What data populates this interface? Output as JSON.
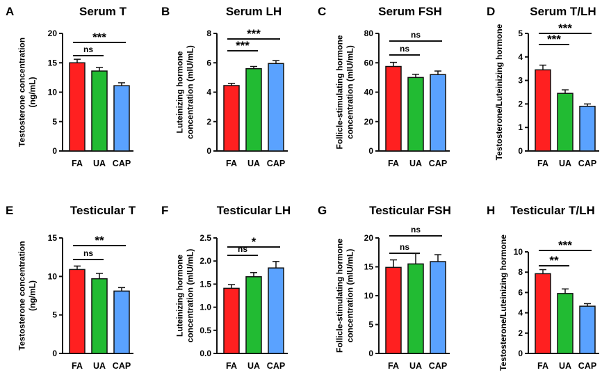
{
  "colors": {
    "FA": "#ff2020",
    "UA": "#22bb33",
    "CAP": "#5aa2ff",
    "axis": "#111111"
  },
  "chart_data": [
    {
      "type": "bar",
      "panel": "A",
      "title": "Serum T",
      "ylabel": [
        "Testosterone concentration",
        "(ng/mL)"
      ],
      "categories": [
        "FA",
        "UA",
        "CAP"
      ],
      "values": [
        15.0,
        13.6,
        11.1
      ],
      "errors": [
        0.6,
        0.6,
        0.5
      ],
      "ylim": [
        0,
        20
      ],
      "yticks": [
        "0",
        "5",
        "10",
        "15",
        "20"
      ],
      "significance": [
        {
          "from": "FA",
          "to": "UA",
          "label": "ns"
        },
        {
          "from": "FA",
          "to": "CAP",
          "label": "***"
        }
      ]
    },
    {
      "type": "bar",
      "panel": "B",
      "title": "Serum LH",
      "ylabel": [
        "Luteinizing hormone",
        "concentration (mIU/mL)"
      ],
      "categories": [
        "FA",
        "UA",
        "CAP"
      ],
      "values": [
        4.45,
        5.6,
        5.95
      ],
      "errors": [
        0.15,
        0.15,
        0.2
      ],
      "ylim": [
        0,
        8
      ],
      "yticks": [
        "0",
        "2",
        "4",
        "6",
        "8"
      ],
      "significance": [
        {
          "from": "FA",
          "to": "UA",
          "label": "***"
        },
        {
          "from": "FA",
          "to": "CAP",
          "label": "***"
        }
      ]
    },
    {
      "type": "bar",
      "panel": "C",
      "title": "Serum FSH",
      "ylabel": [
        "Follicle-stimulating hormone",
        "concentration (mIU/mL)"
      ],
      "categories": [
        "FA",
        "UA",
        "CAP"
      ],
      "values": [
        57.5,
        50.0,
        52.0
      ],
      "errors": [
        2.8,
        2.2,
        2.4
      ],
      "ylim": [
        0,
        80
      ],
      "yticks": [
        "0",
        "20",
        "40",
        "60",
        "80"
      ],
      "significance": [
        {
          "from": "FA",
          "to": "UA",
          "label": "ns"
        },
        {
          "from": "FA",
          "to": "CAP",
          "label": "ns"
        }
      ]
    },
    {
      "type": "bar",
      "panel": "D",
      "title": "Serum T/LH",
      "ylabel": [
        "Testosterone/Luteinizing hormone"
      ],
      "categories": [
        "FA",
        "UA",
        "CAP"
      ],
      "values": [
        3.45,
        2.45,
        1.9
      ],
      "errors": [
        0.2,
        0.15,
        0.1
      ],
      "ylim": [
        0,
        5
      ],
      "yticks": [
        "0",
        "1",
        "2",
        "3",
        "4",
        "5"
      ],
      "significance": [
        {
          "from": "FA",
          "to": "UA",
          "label": "***"
        },
        {
          "from": "FA",
          "to": "CAP",
          "label": "***"
        }
      ]
    },
    {
      "type": "bar",
      "panel": "E",
      "title": "Testicular T",
      "ylabel": [
        "Testosterone concentration",
        "(ng/mL)"
      ],
      "categories": [
        "FA",
        "UA",
        "CAP"
      ],
      "values": [
        10.9,
        9.7,
        8.1
      ],
      "errors": [
        0.45,
        0.7,
        0.45
      ],
      "ylim": [
        0,
        15
      ],
      "yticks": [
        "0",
        "5",
        "10",
        "15"
      ],
      "significance": [
        {
          "from": "FA",
          "to": "UA",
          "label": "ns"
        },
        {
          "from": "FA",
          "to": "CAP",
          "label": "**"
        }
      ]
    },
    {
      "type": "bar",
      "panel": "F",
      "title": "Testicular LH",
      "ylabel": [
        "Luteinizing hormone",
        "concentration (mIU/mL)"
      ],
      "categories": [
        "FA",
        "UA",
        "CAP"
      ],
      "values": [
        1.41,
        1.66,
        1.85
      ],
      "errors": [
        0.08,
        0.09,
        0.14
      ],
      "ylim": [
        0,
        2.5
      ],
      "yticks": [
        "0.0",
        "0.5",
        "1.0",
        "1.5",
        "2.0",
        "2.5"
      ],
      "significance": [
        {
          "from": "FA",
          "to": "UA",
          "label": "ns"
        },
        {
          "from": "FA",
          "to": "CAP",
          "label": "*"
        }
      ]
    },
    {
      "type": "bar",
      "panel": "G",
      "title": "Testicular FSH",
      "ylabel": [
        "Follicle-stimulating hormone",
        "concentration (mIU/mL)"
      ],
      "categories": [
        "FA",
        "UA",
        "CAP"
      ],
      "values": [
        14.9,
        15.5,
        15.9
      ],
      "errors": [
        1.3,
        1.8,
        1.2
      ],
      "ylim": [
        0,
        20
      ],
      "yticks": [
        "0",
        "5",
        "10",
        "15",
        "20"
      ],
      "significance": [
        {
          "from": "FA",
          "to": "UA",
          "label": "ns"
        },
        {
          "from": "FA",
          "to": "CAP",
          "label": "ns"
        }
      ]
    },
    {
      "type": "bar",
      "panel": "H",
      "title": "Testicular T/LH",
      "ylabel": [
        "Testosterone/Luteinizing hormone"
      ],
      "categories": [
        "FA",
        "UA",
        "CAP"
      ],
      "values": [
        7.85,
        5.9,
        4.65
      ],
      "errors": [
        0.4,
        0.45,
        0.25
      ],
      "ylim": [
        0,
        10
      ],
      "yticks": [
        "0",
        "2",
        "4",
        "6",
        "8",
        "10"
      ],
      "significance": [
        {
          "from": "FA",
          "to": "UA",
          "label": "**"
        },
        {
          "from": "FA",
          "to": "CAP",
          "label": "***"
        }
      ]
    }
  ]
}
